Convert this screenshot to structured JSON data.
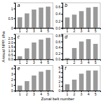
{
  "chart_data": [
    {
      "type": "bar",
      "title": "a",
      "xlabel": "Zonal belt number",
      "ylabel": "Annual NPP, t/ha",
      "categories": [
        "1",
        "2",
        "3",
        "4",
        "5"
      ],
      "values": [
        0.55,
        0.75,
        0.95,
        1.05,
        1.1
      ],
      "color": "#999999",
      "ylim": [
        0,
        1.3
      ],
      "yticks": [
        0,
        0.5,
        1
      ]
    },
    {
      "type": "bar",
      "title": "b",
      "categories": [
        "1",
        "2",
        "3",
        "4",
        "5"
      ],
      "values": [
        0.3,
        0.38,
        0.48,
        0.58,
        0.6
      ],
      "color": "#999999",
      "ylim": [
        0,
        0.72
      ],
      "yticks": [
        {
          "value": 0.0,
          "label": "0.0"
        },
        0.2,
        0.4,
        0.6
      ]
    },
    {
      "type": "bar",
      "title": "c",
      "categories": [
        "1",
        "2",
        "3",
        "4",
        "5"
      ],
      "values": [
        0.35,
        1.3,
        2.0,
        2.35,
        2.55
      ],
      "color": "#999999",
      "ylim": [
        0,
        3.0
      ],
      "yticks": [
        {
          "value": 0.0,
          "label": "0.0"
        },
        0.5,
        {
          "value": 1.0,
          "label": "1.0"
        },
        1.5,
        {
          "value": 2.0,
          "label": "2.0"
        },
        2.5
      ]
    },
    {
      "type": "bar",
      "title": "d",
      "categories": [
        "1",
        "2",
        "3",
        "4",
        "5"
      ],
      "values": [
        0.04,
        0.38,
        0.6,
        0.68,
        0.52
      ],
      "color": "#999999",
      "ylim": [
        0,
        0.85
      ],
      "yticks": [
        {
          "value": 0.0,
          "label": "0.0"
        },
        0.2,
        0.4,
        0.6,
        0.8
      ]
    },
    {
      "type": "bar",
      "title": "e",
      "categories": [
        "1",
        "2",
        "3",
        "4",
        "5"
      ],
      "values": [
        0.9,
        1.7,
        2.7,
        3.4,
        3.7
      ],
      "color": "#999999",
      "ylim": [
        0,
        4.5
      ],
      "yticks": [
        0,
        1,
        2,
        3,
        4
      ]
    },
    {
      "type": "bar",
      "title": "f",
      "categories": [
        "1",
        "2",
        "3",
        "4",
        "5"
      ],
      "values": [
        1.4,
        2.4,
        3.7,
        4.4,
        4.4
      ],
      "color": "#999999",
      "ylim": [
        0,
        5.5
      ],
      "yticks": [
        0,
        1,
        2,
        3,
        4,
        5
      ]
    }
  ]
}
